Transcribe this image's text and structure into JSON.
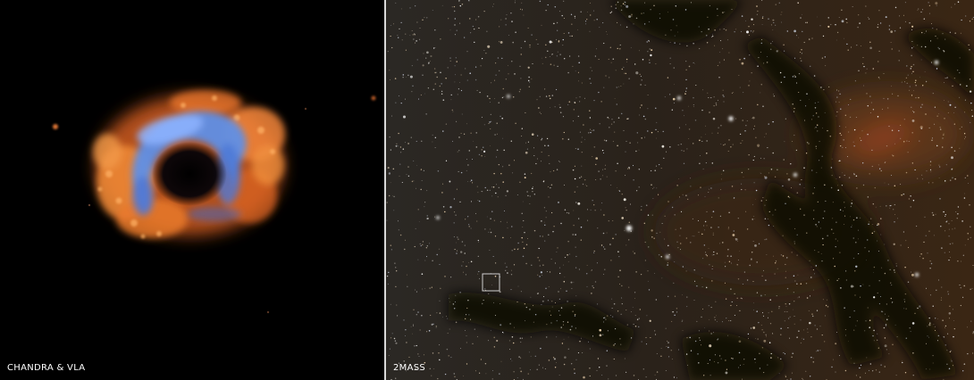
{
  "left_panel": {
    "caption": "CHANDRA & VLA",
    "colors": {
      "shell_orange": "#e8742a",
      "inner_blue": "#5f8fe6",
      "background": "#000000"
    },
    "icon": "supernova-remnant-ring-image"
  },
  "right_panel": {
    "caption": "2MASS",
    "colors": {
      "dust": "#1a1008",
      "nebula_glow": "#c0502a",
      "star": "#ffffff",
      "marker": "#cccccc"
    },
    "icon": "star-field-image",
    "marker_icon": "location-box-icon"
  }
}
